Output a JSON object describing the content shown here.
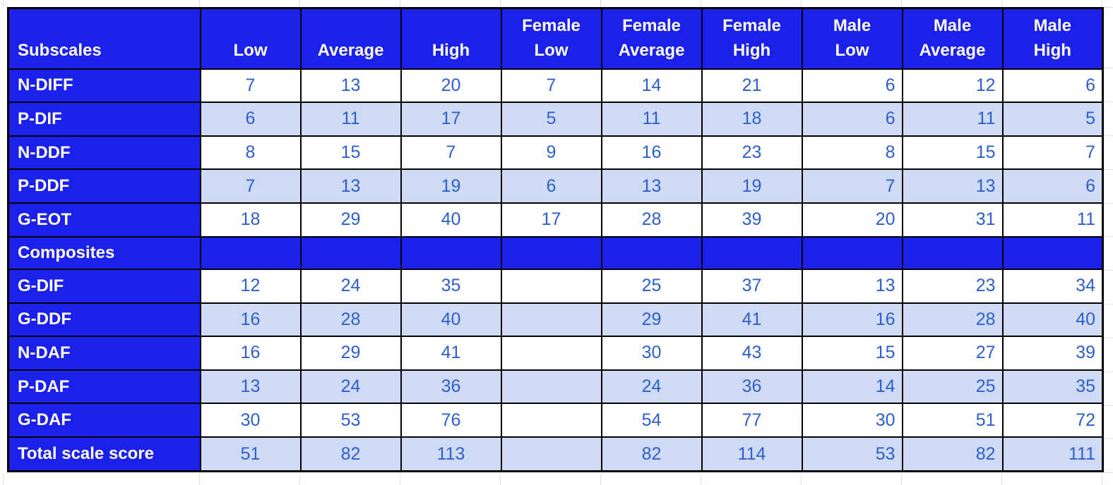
{
  "table": {
    "header": [
      "Subscales",
      "Low",
      "Average",
      "High",
      "Female\nLow",
      "Female\nAverage",
      "Female\nHigh",
      "Male\nLow",
      "Male\nAverage",
      "Male\nHigh"
    ],
    "rows": [
      {
        "label": "N-DIFF",
        "type": "data",
        "values": [
          "7",
          "13",
          "20",
          "7",
          "14",
          "21",
          "6",
          "12",
          "6"
        ]
      },
      {
        "label": "P-DIF",
        "type": "data",
        "values": [
          "6",
          "11",
          "17",
          "5",
          "11",
          "18",
          "6",
          "11",
          "5"
        ]
      },
      {
        "label": "N-DDF",
        "type": "data",
        "values": [
          "8",
          "15",
          "7",
          "9",
          "16",
          "23",
          "8",
          "15",
          "7"
        ]
      },
      {
        "label": "P-DDF",
        "type": "data",
        "values": [
          "7",
          "13",
          "19",
          "6",
          "13",
          "19",
          "7",
          "13",
          "6"
        ]
      },
      {
        "label": "G-EOT",
        "type": "data",
        "values": [
          "18",
          "29",
          "40",
          "17",
          "28",
          "39",
          "20",
          "31",
          "11"
        ]
      },
      {
        "label": "Composites",
        "type": "section",
        "values": [
          "",
          "",
          "",
          "",
          "",
          "",
          "",
          "",
          ""
        ]
      },
      {
        "label": "G-DIF",
        "type": "data",
        "values": [
          "12",
          "24",
          "35",
          "",
          "25",
          "37",
          "13",
          "23",
          "34"
        ]
      },
      {
        "label": "G-DDF",
        "type": "data",
        "values": [
          "16",
          "28",
          "40",
          "",
          "29",
          "41",
          "16",
          "28",
          "40"
        ]
      },
      {
        "label": "N-DAF",
        "type": "data",
        "values": [
          "16",
          "29",
          "41",
          "",
          "30",
          "43",
          "15",
          "27",
          "39"
        ]
      },
      {
        "label": "P-DAF",
        "type": "data",
        "values": [
          "13",
          "24",
          "36",
          "",
          "24",
          "36",
          "14",
          "25",
          "35"
        ]
      },
      {
        "label": "G-DAF",
        "type": "data",
        "values": [
          "30",
          "53",
          "76",
          "",
          "54",
          "77",
          "30",
          "51",
          "72"
        ]
      },
      {
        "label": "Total scale score",
        "type": "data",
        "values": [
          "51",
          "82",
          "113",
          "",
          "82",
          "114",
          "53",
          "82",
          "111"
        ]
      }
    ],
    "colors": {
      "header_fill": "#1b21eb",
      "band_light": "#cfdbf4",
      "band_white": "#ffffff",
      "value_text": "#2d5ecc",
      "header_text": "#ffffff",
      "cell_border": "#000000",
      "sheet_gridline": "#e0e0e0"
    }
  }
}
